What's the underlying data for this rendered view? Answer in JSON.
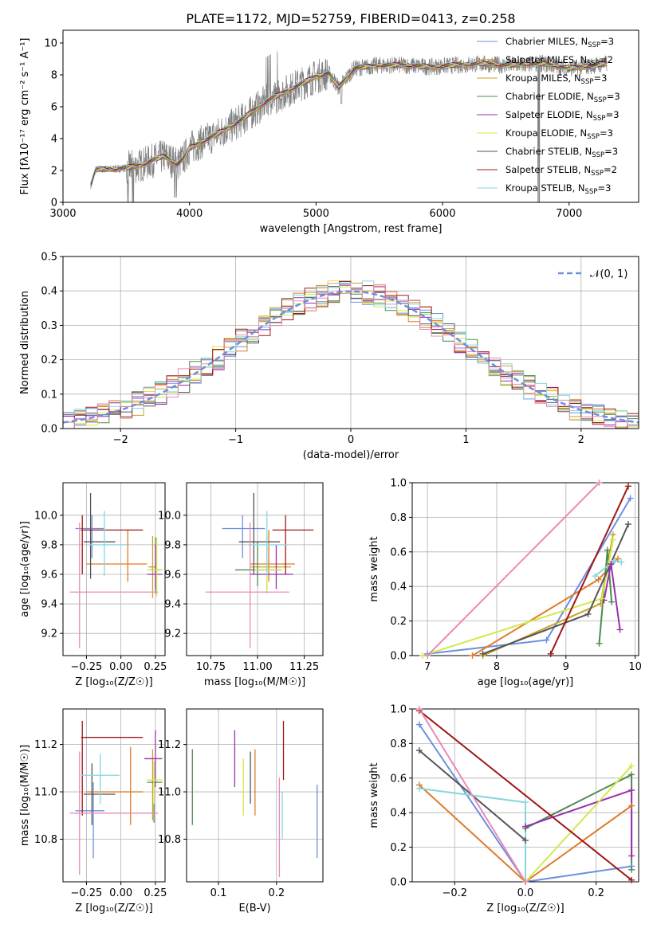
{
  "title": "PLATE=1172, MJD=52759, FIBERID=0413, z=0.258",
  "colors": {
    "chabrier_miles": "#6b8fe0",
    "salpeter_miles": "#e07b27",
    "kroupa_miles": "#c9a227",
    "chabrier_elodie": "#4e8a4e",
    "salpeter_elodie": "#9b2fb0",
    "kroupa_elodie": "#d4e84a",
    "chabrier_stelib": "#555555",
    "salpeter_stelib": "#a01818",
    "kroupa_stelib": "#86d6e0",
    "pink": "#e98ab4",
    "data": "#808080"
  },
  "chart_data": [
    {
      "id": "spectrum",
      "type": "line",
      "xlabel": "wavelength [Angstrom, rest frame]",
      "ylabel": "Flux [fλ10⁻¹⁷ erg cm⁻² s⁻¹ A⁻¹]",
      "xlim": [
        3000,
        7550
      ],
      "ylim": [
        0,
        10.8
      ],
      "xticks": [
        3000,
        4000,
        5000,
        6000,
        7000
      ],
      "yticks": [
        0,
        2,
        4,
        6,
        8,
        10
      ],
      "legend_placement": "top-right",
      "legend": [
        "Chabrier MILES, N_SSP=3",
        "Salpeter MILES, N_SSP=2",
        "Kroupa MILES, N_SSP=3",
        "Chabrier ELODIE, N_SSP=3",
        "Salpeter ELODIE, N_SSP=3",
        "Kroupa ELODIE, N_SSP=3",
        "Chabrier STELIB, N_SSP=3",
        "Salpeter STELIB, N_SSP=2",
        "Kroupa STELIB, N_SSP=3"
      ],
      "continuum": [
        [
          3220,
          1.1
        ],
        [
          3260,
          2.05
        ],
        [
          3400,
          2.1
        ],
        [
          3500,
          2.15
        ],
        [
          3600,
          2.3
        ],
        [
          3700,
          2.6
        ],
        [
          3800,
          2.9
        ],
        [
          3900,
          2.4
        ],
        [
          3950,
          2.7
        ],
        [
          4000,
          3.4
        ],
        [
          4200,
          4.2
        ],
        [
          4400,
          5.1
        ],
        [
          4600,
          6.3
        ],
        [
          4800,
          7.1
        ],
        [
          4900,
          7.5
        ],
        [
          5000,
          7.9
        ],
        [
          5100,
          8.1
        ],
        [
          5180,
          7.2
        ],
        [
          5300,
          8.4
        ],
        [
          5500,
          8.6
        ],
        [
          5700,
          8.6
        ],
        [
          5900,
          8.5
        ],
        [
          6100,
          8.6
        ],
        [
          6300,
          8.7
        ],
        [
          6500,
          8.6
        ],
        [
          6800,
          8.7
        ],
        [
          7000,
          8.4
        ],
        [
          7200,
          8.6
        ],
        [
          7300,
          8.7
        ]
      ]
    },
    {
      "id": "residuals",
      "type": "line",
      "xlabel": "(data-model)/error",
      "ylabel": "Normed distribution",
      "xlim": [
        -2.5,
        2.5
      ],
      "ylim": [
        0,
        0.5
      ],
      "xticks": [
        -2,
        -1,
        0,
        1,
        2
      ],
      "yticks": [
        0.0,
        0.1,
        0.2,
        0.3,
        0.4,
        0.5
      ],
      "grid": true,
      "legend": "𝒩(0, 1)",
      "legend_placement": "top-right"
    },
    {
      "id": "age_vs_Z",
      "type": "scatter",
      "xlabel": "Z [log₁₀(Z/Z☉)]",
      "ylabel": "age  [log₁₀(age/yr)]",
      "xlim": [
        -0.42,
        0.32
      ],
      "ylim": [
        9.05,
        10.22
      ],
      "xticks": [
        -0.25,
        0.0,
        0.25
      ],
      "yticks": [
        9.2,
        9.4,
        9.6,
        9.8,
        10.0
      ],
      "grid": true,
      "errorbars": [
        {
          "c": "chabrier_miles",
          "x": -0.21,
          "xe": [
            -0.33,
            -0.12
          ],
          "y": 9.91,
          "ye": [
            9.71,
            10.0
          ]
        },
        {
          "c": "salpeter_miles",
          "x": 0.05,
          "xe": [
            -0.25,
            0.19
          ],
          "y": 9.67,
          "ye": [
            9.55,
            9.9
          ]
        },
        {
          "c": "kroupa_miles",
          "x": 0.23,
          "xe": [
            0.2,
            0.25
          ],
          "y": 9.65,
          "ye": [
            9.44,
            9.86
          ]
        },
        {
          "c": "chabrier_elodie",
          "x": 0.25,
          "xe": [
            0.21,
            0.3
          ],
          "y": 9.63,
          "ye": [
            9.47,
            9.85
          ]
        },
        {
          "c": "salpeter_elodie",
          "x": 0.25,
          "xe": [
            0.19,
            0.3
          ],
          "y": 9.6,
          "ye": [
            9.5,
            9.8
          ]
        },
        {
          "c": "kroupa_elodie",
          "x": 0.26,
          "xe": [
            0.19,
            0.3
          ],
          "y": 9.63,
          "ye": [
            9.45,
            9.85
          ]
        },
        {
          "c": "chabrier_stelib",
          "x": -0.22,
          "xe": [
            -0.27,
            -0.04
          ],
          "y": 9.82,
          "ye": [
            9.57,
            10.15
          ]
        },
        {
          "c": "salpeter_stelib",
          "x": -0.28,
          "xe": [
            -0.29,
            0.16
          ],
          "y": 9.9,
          "ye": [
            9.6,
            10.0
          ]
        },
        {
          "c": "kroupa_stelib",
          "x": -0.12,
          "xe": [
            -0.23,
            0.04
          ],
          "y": 9.8,
          "ye": [
            9.59,
            10.03
          ]
        },
        {
          "c": "pink",
          "x": -0.3,
          "xe": [
            -0.37,
            0.27
          ],
          "y": 9.48,
          "ye": [
            9.1,
            9.95
          ]
        }
      ]
    },
    {
      "id": "age_vs_mass",
      "type": "scatter",
      "xlabel": "mass [log₁₀(M/M☉)]",
      "xlim": [
        10.62,
        11.35
      ],
      "ylim": [
        9.05,
        10.22
      ],
      "xticks": [
        10.75,
        11.0,
        11.25
      ],
      "yticks": [
        9.2,
        9.4,
        9.6,
        9.8,
        10.0
      ],
      "grid": true,
      "errorbars": [
        {
          "c": "chabrier_miles",
          "x": 10.92,
          "xe": [
            10.81,
            11.04
          ],
          "y": 9.91,
          "ye": [
            9.71,
            10.0
          ]
        },
        {
          "c": "salpeter_miles",
          "x": 11.06,
          "xe": [
            10.96,
            11.2
          ],
          "y": 9.67,
          "ye": [
            9.55,
            9.9
          ]
        },
        {
          "c": "kroupa_miles",
          "x": 11.05,
          "xe": [
            10.96,
            11.18
          ],
          "y": 9.65,
          "ye": [
            9.49,
            9.86
          ]
        },
        {
          "c": "chabrier_elodie",
          "x": 11.0,
          "xe": [
            10.88,
            11.13
          ],
          "y": 9.63,
          "ye": [
            9.52,
            9.82
          ]
        },
        {
          "c": "salpeter_elodie",
          "x": 11.1,
          "xe": [
            10.96,
            11.19
          ],
          "y": 9.6,
          "ye": [
            9.5,
            9.8
          ]
        },
        {
          "c": "kroupa_elodie",
          "x": 11.05,
          "xe": [
            10.98,
            11.13
          ],
          "y": 9.63,
          "ye": [
            9.47,
            9.85
          ]
        },
        {
          "c": "chabrier_stelib",
          "x": 10.98,
          "xe": [
            10.9,
            11.12
          ],
          "y": 9.82,
          "ye": [
            9.6,
            10.15
          ]
        },
        {
          "c": "salpeter_stelib",
          "x": 11.15,
          "xe": [
            11.08,
            11.3
          ],
          "y": 9.9,
          "ye": [
            9.6,
            10.0
          ]
        },
        {
          "c": "kroupa_stelib",
          "x": 11.05,
          "xe": [
            10.95,
            11.16
          ],
          "y": 9.8,
          "ye": [
            9.59,
            10.03
          ]
        },
        {
          "c": "pink",
          "x": 10.96,
          "xe": [
            10.72,
            11.17
          ],
          "y": 9.48,
          "ye": [
            9.1,
            9.95
          ]
        }
      ]
    },
    {
      "id": "weight_vs_age",
      "type": "line",
      "xlabel": "age  [log₁₀(age/yr)]",
      "ylabel": "mass weight",
      "xlim": [
        6.78,
        10.05
      ],
      "ylim": [
        0,
        1.0
      ],
      "xticks": [
        7,
        8,
        9,
        10
      ],
      "yticks": [
        0.0,
        0.2,
        0.4,
        0.6,
        0.8,
        1.0
      ],
      "grid": true,
      "series": [
        {
          "c": "chabrier_miles",
          "pts": [
            [
              7.0,
              0.01
            ],
            [
              8.72,
              0.09
            ],
            [
              9.93,
              0.91
            ]
          ]
        },
        {
          "c": "salpeter_miles",
          "pts": [
            [
              7.65,
              0.0
            ],
            [
              9.47,
              0.44
            ],
            [
              9.75,
              0.56
            ]
          ]
        },
        {
          "c": "kroupa_miles",
          "pts": [
            [
              7.8,
              0.0
            ],
            [
              9.5,
              0.3
            ],
            [
              9.68,
              0.7
            ]
          ]
        },
        {
          "c": "chabrier_elodie",
          "pts": [
            [
              9.48,
              0.07
            ],
            [
              9.6,
              0.61
            ],
            [
              9.66,
              0.31
            ]
          ]
        },
        {
          "c": "salpeter_elodie",
          "pts": [
            [
              9.55,
              0.32
            ],
            [
              9.65,
              0.53
            ],
            [
              9.78,
              0.15
            ]
          ]
        },
        {
          "c": "kroupa_elodie",
          "pts": [
            [
              6.93,
              0.0
            ],
            [
              9.52,
              0.33
            ],
            [
              9.68,
              0.67
            ]
          ]
        },
        {
          "c": "chabrier_stelib",
          "pts": [
            [
              7.8,
              0.01
            ],
            [
              9.32,
              0.24
            ],
            [
              9.9,
              0.76
            ]
          ]
        },
        {
          "c": "salpeter_stelib",
          "pts": [
            [
              8.78,
              0.01
            ],
            [
              9.9,
              0.98
            ]
          ]
        },
        {
          "c": "kroupa_stelib",
          "pts": [
            [
              9.42,
              0.46
            ],
            [
              9.7,
              0.55
            ],
            [
              9.8,
              0.54
            ]
          ]
        },
        {
          "c": "pink",
          "pts": [
            [
              7.0,
              0.0
            ],
            [
              9.48,
              1.0
            ]
          ]
        }
      ]
    },
    {
      "id": "mass_vs_Z",
      "type": "scatter",
      "xlabel": "Z [log₁₀(Z/Z☉)]",
      "ylabel": "mass [log₁₀(M/M☉)]",
      "xlim": [
        -0.42,
        0.32
      ],
      "ylim": [
        10.62,
        11.35
      ],
      "xticks": [
        -0.25,
        0.0,
        0.25
      ],
      "yticks": [
        10.8,
        11.0,
        11.2
      ],
      "grid": true,
      "errorbars": [
        {
          "c": "chabrier_miles",
          "x": -0.2,
          "xe": [
            -0.33,
            -0.12
          ],
          "y": 10.92,
          "ye": [
            10.72,
            11.04
          ]
        },
        {
          "c": "salpeter_miles",
          "x": 0.07,
          "xe": [
            -0.25,
            0.16
          ],
          "y": 11.0,
          "ye": [
            10.86,
            11.19
          ]
        },
        {
          "c": "kroupa_miles",
          "x": 0.23,
          "xe": [
            0.2,
            0.25
          ],
          "y": 11.05,
          "ye": [
            10.88,
            11.18
          ]
        },
        {
          "c": "chabrier_elodie",
          "x": 0.24,
          "xe": [
            0.19,
            0.3
          ],
          "y": 11.04,
          "ye": [
            10.87,
            11.13
          ]
        },
        {
          "c": "salpeter_elodie",
          "x": 0.25,
          "xe": [
            0.17,
            0.3
          ],
          "y": 11.14,
          "ye": [
            11.02,
            11.26
          ]
        },
        {
          "c": "kroupa_elodie",
          "x": 0.24,
          "xe": [
            0.19,
            0.3
          ],
          "y": 11.05,
          "ye": [
            10.95,
            11.13
          ]
        },
        {
          "c": "chabrier_stelib",
          "x": -0.21,
          "xe": [
            -0.27,
            -0.04
          ],
          "y": 10.99,
          "ye": [
            10.86,
            11.12
          ]
        },
        {
          "c": "salpeter_stelib",
          "x": -0.28,
          "xe": [
            -0.29,
            0.16
          ],
          "y": 11.23,
          "ye": [
            10.9,
            11.3
          ]
        },
        {
          "c": "kroupa_stelib",
          "x": -0.15,
          "xe": [
            -0.29,
            -0.01
          ],
          "y": 11.07,
          "ye": [
            10.95,
            11.16
          ]
        },
        {
          "c": "pink",
          "x": -0.3,
          "xe": [
            -0.37,
            0.27
          ],
          "y": 10.91,
          "ye": [
            10.65,
            11.17
          ]
        }
      ]
    },
    {
      "id": "mass_vs_EBV",
      "type": "scatter",
      "xlabel": "E(B-V)",
      "xlim": [
        0.045,
        0.28
      ],
      "ylim": [
        10.62,
        11.35
      ],
      "xticks": [
        0.1,
        0.2
      ],
      "yticks": [
        10.8,
        11.0,
        11.2
      ],
      "grid": true,
      "errorbars": [
        {
          "c": "chabrier_elodie",
          "x": 0.055,
          "ye": [
            10.86,
            11.18
          ]
        },
        {
          "c": "salpeter_elodie",
          "x": 0.128,
          "ye": [
            11.02,
            11.26
          ]
        },
        {
          "c": "kroupa_elodie",
          "x": 0.143,
          "ye": [
            10.9,
            11.14
          ]
        },
        {
          "c": "chabrier_stelib",
          "x": 0.155,
          "ye": [
            10.95,
            11.17
          ]
        },
        {
          "c": "salpeter_miles",
          "x": 0.163,
          "ye": [
            10.9,
            11.18
          ]
        },
        {
          "c": "salpeter_stelib",
          "x": 0.212,
          "ye": [
            11.05,
            11.3
          ]
        },
        {
          "c": "pink",
          "x": 0.205,
          "ye": [
            10.64,
            11.06
          ]
        },
        {
          "c": "kroupa_stelib",
          "x": 0.21,
          "ye": [
            10.8,
            11.0
          ]
        },
        {
          "c": "chabrier_miles",
          "x": 0.27,
          "ye": [
            10.72,
            11.03
          ]
        }
      ]
    },
    {
      "id": "weight_vs_Z",
      "type": "line",
      "xlabel": "Z [log₁₀(Z/Z☉)]",
      "ylabel": "mass weight",
      "xlim": [
        -0.32,
        0.32
      ],
      "ylim": [
        0,
        1.0
      ],
      "xticks": [
        -0.2,
        0.0,
        0.2
      ],
      "yticks": [
        0.0,
        0.2,
        0.4,
        0.6,
        0.8,
        1.0
      ],
      "grid": true,
      "series": [
        {
          "c": "chabrier_miles",
          "pts": [
            [
              -0.3,
              0.91
            ],
            [
              0.0,
              0.0
            ],
            [
              0.3,
              0.09
            ]
          ]
        },
        {
          "c": "salpeter_miles",
          "pts": [
            [
              -0.3,
              0.56
            ],
            [
              0.0,
              0.0
            ],
            [
              0.3,
              0.44
            ]
          ]
        },
        {
          "c": "chabrier_elodie",
          "pts": [
            [
              0.0,
              0.31
            ],
            [
              0.3,
              0.62
            ],
            [
              0.3,
              0.07
            ]
          ]
        },
        {
          "c": "salpeter_elodie",
          "pts": [
            [
              0.0,
              0.32
            ],
            [
              0.3,
              0.53
            ],
            [
              0.3,
              0.15
            ]
          ]
        },
        {
          "c": "kroupa_elodie",
          "pts": [
            [
              0.0,
              0.0
            ],
            [
              0.3,
              0.67
            ]
          ]
        },
        {
          "c": "chabrier_stelib",
          "pts": [
            [
              -0.3,
              0.76
            ],
            [
              0.0,
              0.24
            ]
          ]
        },
        {
          "c": "salpeter_stelib",
          "pts": [
            [
              -0.3,
              0.99
            ],
            [
              0.3,
              0.01
            ]
          ]
        },
        {
          "c": "kroupa_stelib",
          "pts": [
            [
              -0.3,
              0.54
            ],
            [
              0.0,
              0.46
            ],
            [
              0.0,
              0.0
            ]
          ]
        },
        {
          "c": "pink",
          "pts": [
            [
              -0.3,
              1.0
            ],
            [
              0.0,
              0.0
            ]
          ]
        }
      ]
    }
  ]
}
